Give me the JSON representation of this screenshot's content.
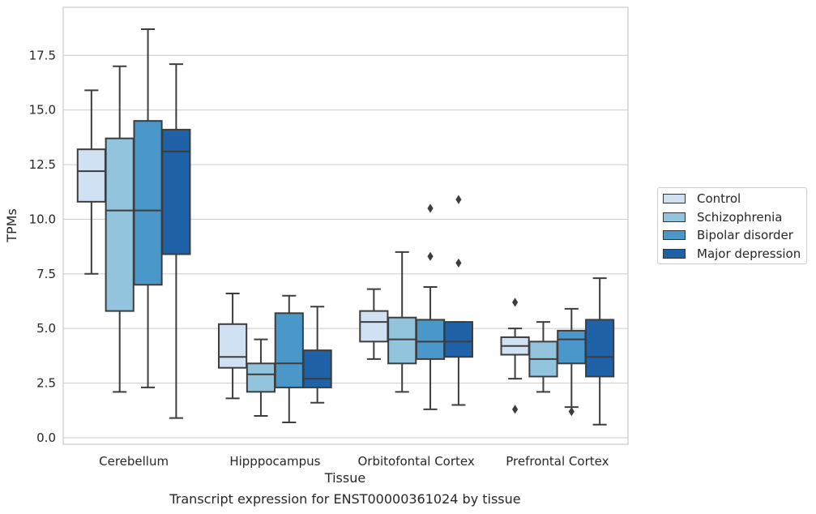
{
  "caption": "Transcript expression for ENST00000361024 by tissue",
  "chart_data": {
    "type": "boxplot",
    "xlabel": "Tissue",
    "ylabel": "TPMs",
    "ylim": [
      -0.3,
      19.7
    ],
    "yticks": [
      0.0,
      2.5,
      5.0,
      7.5,
      10.0,
      12.5,
      15.0,
      17.5
    ],
    "ytick_labels": [
      "0.0",
      "2.5",
      "5.0",
      "7.5",
      "10.0",
      "12.5",
      "15.0",
      "17.5"
    ],
    "grid": "horizontal",
    "legend_position": "right-outside",
    "categories": [
      "Cerebellum",
      "Hipppocampus",
      "Orbitofontal Cortex",
      "Prefrontal Cortex"
    ],
    "series": [
      {
        "name": "Control",
        "color": "#cfe1f2",
        "boxes": [
          {
            "whislo": 7.5,
            "q1": 10.8,
            "med": 12.2,
            "q3": 13.2,
            "whishi": 15.9,
            "fliers": []
          },
          {
            "whislo": 1.8,
            "q1": 3.2,
            "med": 3.7,
            "q3": 5.2,
            "whishi": 6.6,
            "fliers": []
          },
          {
            "whislo": 3.6,
            "q1": 4.4,
            "med": 5.3,
            "q3": 5.8,
            "whishi": 6.8,
            "fliers": []
          },
          {
            "whislo": 2.7,
            "q1": 3.8,
            "med": 4.2,
            "q3": 4.6,
            "whishi": 5.0,
            "fliers": [
              6.2,
              1.3
            ]
          }
        ]
      },
      {
        "name": "Schizophrenia",
        "color": "#93c4de",
        "boxes": [
          {
            "whislo": 2.1,
            "q1": 5.8,
            "med": 10.4,
            "q3": 13.7,
            "whishi": 17.0,
            "fliers": []
          },
          {
            "whislo": 1.0,
            "q1": 2.1,
            "med": 2.9,
            "q3": 3.4,
            "whishi": 4.5,
            "fliers": []
          },
          {
            "whislo": 2.1,
            "q1": 3.4,
            "med": 4.5,
            "q3": 5.5,
            "whishi": 8.5,
            "fliers": []
          },
          {
            "whislo": 2.1,
            "q1": 2.8,
            "med": 3.6,
            "q3": 4.4,
            "whishi": 5.3,
            "fliers": []
          }
        ]
      },
      {
        "name": "Bipolar disorder",
        "color": "#4a98c9",
        "boxes": [
          {
            "whislo": 2.3,
            "q1": 7.0,
            "med": 10.4,
            "q3": 14.5,
            "whishi": 18.7,
            "fliers": []
          },
          {
            "whislo": 0.7,
            "q1": 2.3,
            "med": 3.4,
            "q3": 5.7,
            "whishi": 6.5,
            "fliers": []
          },
          {
            "whislo": 1.3,
            "q1": 3.6,
            "med": 4.4,
            "q3": 5.4,
            "whishi": 6.9,
            "fliers": [
              10.5,
              8.3
            ]
          },
          {
            "whislo": 1.4,
            "q1": 3.4,
            "med": 4.5,
            "q3": 4.9,
            "whishi": 5.9,
            "fliers": [
              1.2
            ]
          }
        ]
      },
      {
        "name": "Major depression",
        "color": "#1f62a8",
        "boxes": [
          {
            "whislo": 0.9,
            "q1": 8.4,
            "med": 13.1,
            "q3": 14.1,
            "whishi": 17.1,
            "fliers": []
          },
          {
            "whislo": 1.6,
            "q1": 2.3,
            "med": 2.7,
            "q3": 4.0,
            "whishi": 6.0,
            "fliers": []
          },
          {
            "whislo": 1.5,
            "q1": 3.7,
            "med": 4.4,
            "q3": 5.3,
            "whishi": 5.3,
            "fliers": [
              10.9,
              8.0
            ]
          },
          {
            "whislo": 0.6,
            "q1": 2.8,
            "med": 3.7,
            "q3": 5.4,
            "whishi": 7.3,
            "fliers": []
          }
        ]
      }
    ]
  }
}
